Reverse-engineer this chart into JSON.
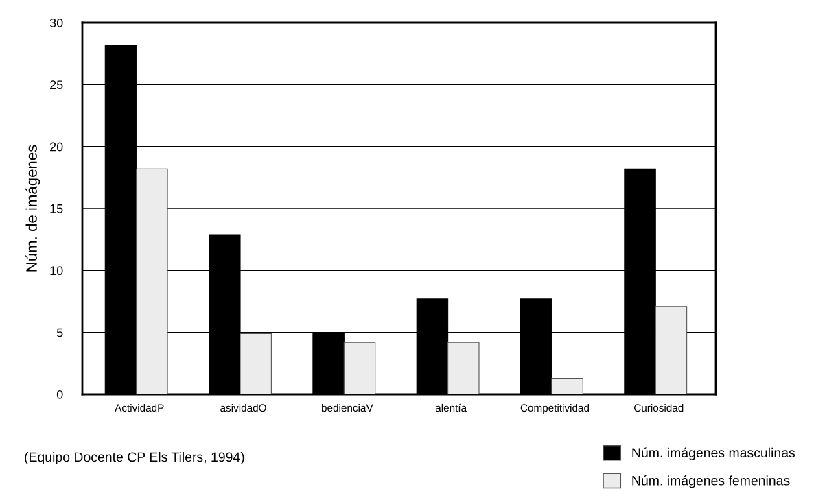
{
  "chart_data": {
    "type": "bar",
    "ylabel": "Núm. de imágenes",
    "categories": [
      "ActividadP",
      "asividadO",
      "bedienciaV",
      "alentía",
      "Competitividad",
      "Curiosidad"
    ],
    "series": [
      {
        "name": "Núm. imágenes masculinas",
        "color": "#000000",
        "values": [
          28.2,
          12.9,
          4.9,
          7.7,
          7.7,
          18.2
        ]
      },
      {
        "name": "Núm. imágenes femeninas",
        "color": "#ececec",
        "values": [
          18.2,
          4.9,
          4.2,
          4.2,
          1.3,
          7.1
        ]
      }
    ],
    "ylim": [
      0,
      30
    ],
    "yticks": [
      0,
      5,
      10,
      15,
      20,
      25,
      30
    ],
    "grid": "y",
    "legend": "bottom right",
    "annotations": [
      "(Equipo Docente CP Els Tilers, 1994)"
    ]
  }
}
